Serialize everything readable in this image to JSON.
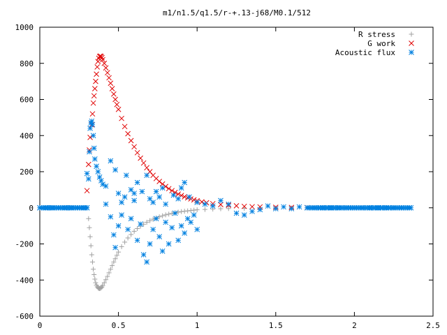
{
  "chart_data": {
    "type": "scatter",
    "title": "m1/n1.5/q1.5/r-+.13-j68/M0.1/512",
    "xlabel": "",
    "ylabel": "",
    "xlim": [
      0,
      2.5
    ],
    "ylim": [
      -600,
      1000
    ],
    "x_ticks": [
      {
        "v": 0,
        "label": "0"
      },
      {
        "v": 0.5,
        "label": "0.5"
      },
      {
        "v": 1,
        "label": "1"
      },
      {
        "v": 1.5,
        "label": "1.5"
      },
      {
        "v": 2,
        "label": "2"
      },
      {
        "v": 2.5,
        "label": "2.5"
      }
    ],
    "y_ticks": [
      {
        "v": -600,
        "label": "-600"
      },
      {
        "v": -400,
        "label": "-400"
      },
      {
        "v": -200,
        "label": "-200"
      },
      {
        "v": 0,
        "label": "0"
      },
      {
        "v": 200,
        "label": "200"
      },
      {
        "v": 400,
        "label": "400"
      },
      {
        "v": 600,
        "label": "600"
      },
      {
        "v": 800,
        "label": "800"
      },
      {
        "v": 1000,
        "label": "1000"
      }
    ],
    "legend_position": "top-right",
    "grid": false,
    "series": [
      {
        "name": "R stress",
        "marker": "plus",
        "color": "#a0a0a0",
        "points": [
          [
            0.31,
            -60
          ],
          [
            0.315,
            -110
          ],
          [
            0.32,
            -160
          ],
          [
            0.325,
            -210
          ],
          [
            0.33,
            -260
          ],
          [
            0.335,
            -300
          ],
          [
            0.34,
            -340
          ],
          [
            0.345,
            -370
          ],
          [
            0.35,
            -395
          ],
          [
            0.355,
            -415
          ],
          [
            0.36,
            -428
          ],
          [
            0.365,
            -437
          ],
          [
            0.37,
            -443
          ],
          [
            0.375,
            -446
          ],
          [
            0.38,
            -447
          ],
          [
            0.385,
            -446
          ],
          [
            0.39,
            -443
          ],
          [
            0.395,
            -438
          ],
          [
            0.4,
            -430
          ],
          [
            0.41,
            -415
          ],
          [
            0.42,
            -398
          ],
          [
            0.43,
            -380
          ],
          [
            0.44,
            -360
          ],
          [
            0.45,
            -340
          ],
          [
            0.46,
            -320
          ],
          [
            0.47,
            -300
          ],
          [
            0.48,
            -282
          ],
          [
            0.49,
            -263
          ],
          [
            0.5,
            -245
          ],
          [
            0.52,
            -215
          ],
          [
            0.54,
            -190
          ],
          [
            0.56,
            -167
          ],
          [
            0.58,
            -148
          ],
          [
            0.6,
            -130
          ],
          [
            0.62,
            -115
          ],
          [
            0.64,
            -102
          ],
          [
            0.66,
            -91
          ],
          [
            0.68,
            -80
          ],
          [
            0.7,
            -71
          ],
          [
            0.72,
            -63
          ],
          [
            0.74,
            -56
          ],
          [
            0.76,
            -50
          ],
          [
            0.78,
            -44
          ],
          [
            0.8,
            -39
          ],
          [
            0.82,
            -35
          ],
          [
            0.84,
            -31
          ],
          [
            0.86,
            -27
          ],
          [
            0.88,
            -24
          ],
          [
            0.9,
            -21
          ],
          [
            0.92,
            -19
          ],
          [
            0.94,
            -17
          ],
          [
            0.96,
            -15
          ],
          [
            0.98,
            -13
          ],
          [
            1.0,
            -11
          ],
          [
            1.05,
            -9
          ],
          [
            1.1,
            -7
          ],
          [
            1.15,
            -5
          ],
          [
            1.2,
            -4
          ],
          [
            1.3,
            -3
          ],
          [
            1.4,
            -2
          ],
          [
            1.5,
            -1
          ],
          [
            1.6,
            -1
          ],
          [
            1.7,
            0
          ]
        ]
      },
      {
        "name": "G work",
        "marker": "cross",
        "color": "#e00000",
        "points": [
          [
            0.3,
            95
          ],
          [
            0.31,
            240
          ],
          [
            0.315,
            320
          ],
          [
            0.32,
            390
          ],
          [
            0.33,
            460
          ],
          [
            0.335,
            520
          ],
          [
            0.34,
            580
          ],
          [
            0.345,
            620
          ],
          [
            0.35,
            660
          ],
          [
            0.355,
            700
          ],
          [
            0.36,
            740
          ],
          [
            0.365,
            780
          ],
          [
            0.37,
            810
          ],
          [
            0.375,
            828
          ],
          [
            0.38,
            838
          ],
          [
            0.385,
            840
          ],
          [
            0.39,
            838
          ],
          [
            0.395,
            832
          ],
          [
            0.4,
            820
          ],
          [
            0.41,
            800
          ],
          [
            0.42,
            775
          ],
          [
            0.43,
            748
          ],
          [
            0.44,
            720
          ],
          [
            0.45,
            690
          ],
          [
            0.46,
            660
          ],
          [
            0.47,
            630
          ],
          [
            0.48,
            600
          ],
          [
            0.49,
            572
          ],
          [
            0.5,
            545
          ],
          [
            0.52,
            495
          ],
          [
            0.54,
            450
          ],
          [
            0.56,
            410
          ],
          [
            0.58,
            372
          ],
          [
            0.6,
            338
          ],
          [
            0.62,
            305
          ],
          [
            0.64,
            275
          ],
          [
            0.66,
            248
          ],
          [
            0.68,
            222
          ],
          [
            0.7,
            200
          ],
          [
            0.72,
            180
          ],
          [
            0.74,
            162
          ],
          [
            0.76,
            146
          ],
          [
            0.78,
            132
          ],
          [
            0.8,
            118
          ],
          [
            0.82,
            106
          ],
          [
            0.84,
            95
          ],
          [
            0.86,
            85
          ],
          [
            0.88,
            76
          ],
          [
            0.9,
            68
          ],
          [
            0.92,
            61
          ],
          [
            0.94,
            55
          ],
          [
            0.96,
            49
          ],
          [
            0.98,
            44
          ],
          [
            1.0,
            39
          ],
          [
            1.03,
            33
          ],
          [
            1.06,
            28
          ],
          [
            1.1,
            23
          ],
          [
            1.15,
            18
          ],
          [
            1.2,
            14
          ],
          [
            1.25,
            11
          ],
          [
            1.3,
            8
          ],
          [
            1.35,
            6
          ],
          [
            1.4,
            5
          ],
          [
            1.5,
            3
          ],
          [
            1.6,
            2
          ],
          [
            1.7,
            1
          ]
        ]
      },
      {
        "name": "Acoustic flux",
        "marker": "star",
        "color": "#0080e0",
        "points": [
          [
            0.0,
            0
          ],
          [
            0.04,
            0
          ],
          [
            0.08,
            0
          ],
          [
            0.12,
            0
          ],
          [
            0.16,
            0
          ],
          [
            0.2,
            0
          ],
          [
            0.24,
            0
          ],
          [
            0.28,
            0
          ],
          [
            0.3,
            0
          ],
          [
            0.3,
            190
          ],
          [
            0.31,
            160
          ],
          [
            0.315,
            310
          ],
          [
            0.32,
            440
          ],
          [
            0.325,
            470
          ],
          [
            0.33,
            480
          ],
          [
            0.335,
            460
          ],
          [
            0.34,
            400
          ],
          [
            0.345,
            330
          ],
          [
            0.35,
            270
          ],
          [
            0.36,
            230
          ],
          [
            0.37,
            200
          ],
          [
            0.38,
            170
          ],
          [
            0.39,
            150
          ],
          [
            0.4,
            130
          ],
          [
            0.42,
            20
          ],
          [
            0.45,
            -50
          ],
          [
            0.47,
            -150
          ],
          [
            0.48,
            -220
          ],
          [
            0.5,
            -100
          ],
          [
            0.52,
            -40
          ],
          [
            0.54,
            60
          ],
          [
            0.56,
            -120
          ],
          [
            0.58,
            -60
          ],
          [
            0.6,
            80
          ],
          [
            0.62,
            -180
          ],
          [
            0.64,
            -90
          ],
          [
            0.66,
            -260
          ],
          [
            0.68,
            -300
          ],
          [
            0.7,
            -200
          ],
          [
            0.72,
            -120
          ],
          [
            0.74,
            -60
          ],
          [
            0.76,
            -160
          ],
          [
            0.78,
            -240
          ],
          [
            0.8,
            -80
          ],
          [
            0.82,
            -200
          ],
          [
            0.84,
            -110
          ],
          [
            0.86,
            -30
          ],
          [
            0.88,
            -180
          ],
          [
            0.9,
            -100
          ],
          [
            0.92,
            -140
          ],
          [
            0.94,
            -60
          ],
          [
            0.96,
            -80
          ],
          [
            0.98,
            -40
          ],
          [
            1.0,
            -120
          ],
          [
            0.42,
            120
          ],
          [
            0.45,
            260
          ],
          [
            0.48,
            210
          ],
          [
            0.5,
            80
          ],
          [
            0.52,
            30
          ],
          [
            0.55,
            180
          ],
          [
            0.58,
            100
          ],
          [
            0.6,
            40
          ],
          [
            0.62,
            140
          ],
          [
            0.65,
            90
          ],
          [
            0.68,
            180
          ],
          [
            0.7,
            50
          ],
          [
            0.72,
            30
          ],
          [
            0.74,
            90
          ],
          [
            0.76,
            60
          ],
          [
            0.78,
            110
          ],
          [
            0.8,
            20
          ],
          [
            0.85,
            70
          ],
          [
            0.88,
            50
          ],
          [
            0.9,
            110
          ],
          [
            0.92,
            140
          ],
          [
            0.95,
            60
          ],
          [
            1.0,
            30
          ],
          [
            1.05,
            20
          ],
          [
            1.1,
            10
          ],
          [
            1.15,
            40
          ],
          [
            1.2,
            20
          ],
          [
            1.25,
            -30
          ],
          [
            1.3,
            -40
          ],
          [
            1.35,
            -20
          ],
          [
            1.4,
            -10
          ],
          [
            1.45,
            10
          ],
          [
            1.5,
            -5
          ],
          [
            1.55,
            5
          ],
          [
            1.6,
            -5
          ],
          [
            1.65,
            5
          ],
          [
            1.7,
            0
          ],
          [
            1.75,
            0
          ],
          [
            1.8,
            0
          ],
          [
            1.85,
            0
          ],
          [
            1.9,
            0
          ],
          [
            1.95,
            0
          ],
          [
            2.0,
            0
          ],
          [
            2.05,
            0
          ],
          [
            2.1,
            0
          ],
          [
            2.15,
            0
          ],
          [
            2.2,
            0
          ],
          [
            2.25,
            0
          ],
          [
            2.3,
            0
          ],
          [
            2.35,
            0
          ]
        ]
      }
    ]
  }
}
